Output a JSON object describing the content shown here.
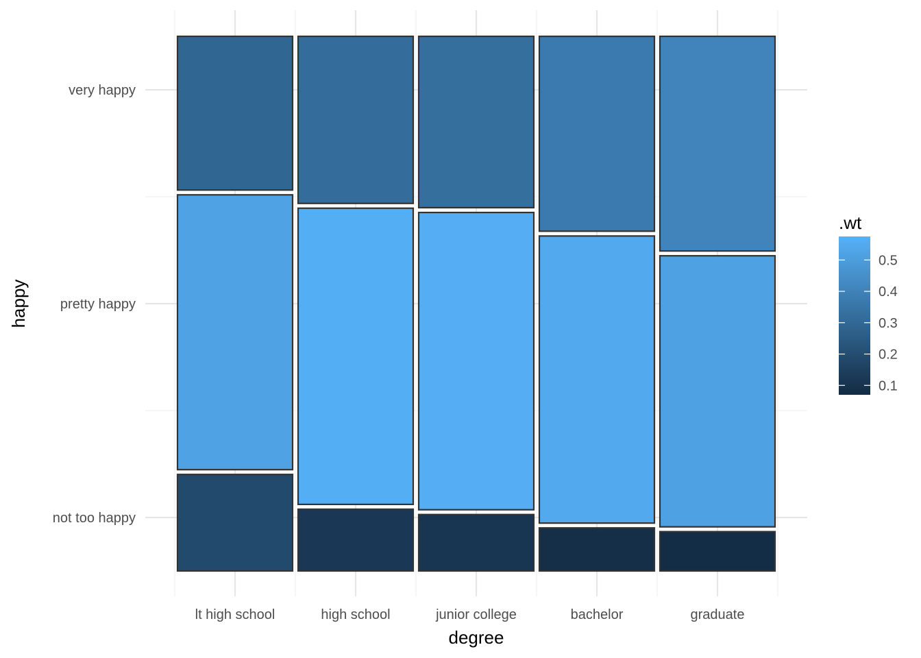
{
  "chart_data": {
    "type": "mosaic",
    "xlabel": "degree",
    "ylabel": "happy",
    "categories": [
      "lt high school",
      "high school",
      "junior college",
      "bachelor",
      "graduate"
    ],
    "category_shares": [
      0.2,
      0.2,
      0.2,
      0.2,
      0.2
    ],
    "rows": [
      "not too happy",
      "pretty happy",
      "very happy"
    ],
    "proportions": [
      [
        0.185,
        0.523,
        0.292
      ],
      [
        0.12,
        0.563,
        0.317
      ],
      [
        0.11,
        0.565,
        0.325
      ],
      [
        0.085,
        0.546,
        0.369
      ],
      [
        0.078,
        0.516,
        0.406
      ]
    ],
    "weights": [
      [
        0.185,
        0.523,
        0.292
      ],
      [
        0.12,
        0.563,
        0.317
      ],
      [
        0.11,
        0.565,
        0.325
      ],
      [
        0.085,
        0.546,
        0.369
      ],
      [
        0.078,
        0.516,
        0.406
      ]
    ],
    "legend": {
      "title": ".wt",
      "ticks": [
        "0.1",
        "0.2",
        "0.3",
        "0.4",
        "0.5"
      ],
      "tick_values": [
        0.1,
        0.2,
        0.3,
        0.4,
        0.5
      ],
      "range": [
        0.07,
        0.575
      ],
      "placement": "right",
      "color_low": "#132B43",
      "color_high": "#56B1F7"
    },
    "grid": true,
    "y_tick_values": [
      0.1,
      0.5,
      0.9
    ]
  }
}
